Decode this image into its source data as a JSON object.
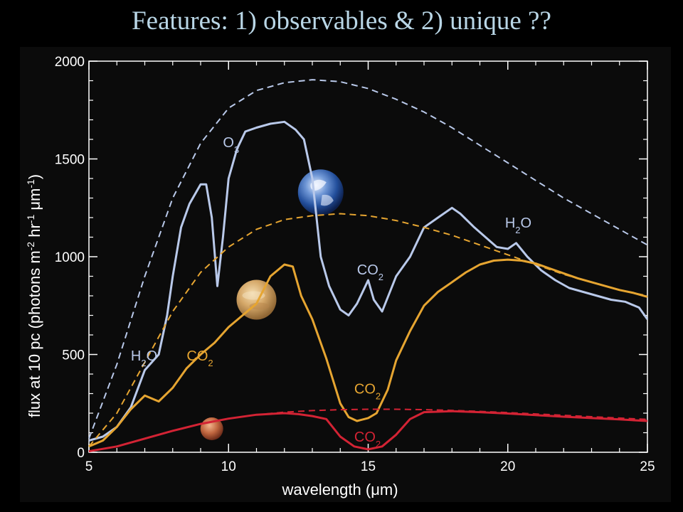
{
  "title": "Features:  1) observables  &  2) unique ??",
  "chart_data": {
    "type": "line",
    "xlabel": "wavelength (μm)",
    "ylabel_parts": {
      "base": "flux at 10 pc (photons m",
      "exp1": "-2",
      "mid": " hr",
      "exp2": "-1",
      "end": " μm",
      "exp3": "-1",
      "close": ")"
    },
    "xlim": [
      5,
      25
    ],
    "ylim": [
      0,
      2000
    ],
    "x_ticks": [
      5,
      10,
      15,
      20,
      25
    ],
    "y_ticks": [
      0,
      500,
      1000,
      1500,
      2000
    ],
    "colors": {
      "earth": "#b9c9ea",
      "venus": "#e6a531",
      "mars": "#d32334"
    },
    "series": [
      {
        "key": "earth-blackbody",
        "style": "dashed",
        "color": "#b9c9ea",
        "x": [
          5,
          6,
          7,
          8,
          9,
          10,
          11,
          12,
          13,
          14,
          15,
          16,
          17,
          18,
          19,
          20,
          21,
          22,
          23,
          24,
          25
        ],
        "y": [
          70,
          450,
          900,
          1300,
          1580,
          1760,
          1850,
          1890,
          1905,
          1895,
          1860,
          1805,
          1740,
          1660,
          1570,
          1480,
          1390,
          1300,
          1220,
          1140,
          1060
        ]
      },
      {
        "key": "earth-spectrum",
        "style": "solid",
        "color": "#b9c9ea",
        "x": [
          5,
          5.5,
          6,
          6.5,
          7,
          7.5,
          7.8,
          8,
          8.3,
          8.6,
          9,
          9.2,
          9.4,
          9.6,
          9.8,
          10,
          10.3,
          10.6,
          11,
          11.5,
          12,
          12.4,
          12.7,
          13,
          13.3,
          13.6,
          14,
          14.3,
          14.6,
          14.9,
          15,
          15.2,
          15.5,
          16,
          16.5,
          17,
          17.5,
          18,
          18.3,
          18.8,
          19.2,
          19.6,
          20,
          20.3,
          20.7,
          21.2,
          21.7,
          22.2,
          22.7,
          23.2,
          23.7,
          24.2,
          24.7,
          25
        ],
        "y": [
          60,
          80,
          130,
          230,
          420,
          500,
          700,
          900,
          1150,
          1270,
          1370,
          1370,
          1200,
          850,
          1100,
          1400,
          1550,
          1640,
          1660,
          1680,
          1690,
          1650,
          1600,
          1400,
          1000,
          850,
          730,
          700,
          760,
          850,
          880,
          780,
          720,
          900,
          1000,
          1150,
          1200,
          1250,
          1220,
          1150,
          1100,
          1050,
          1040,
          1070,
          1000,
          930,
          880,
          840,
          820,
          800,
          780,
          770,
          740,
          680
        ]
      },
      {
        "key": "venus-blackbody",
        "style": "dashed",
        "color": "#e6a531",
        "x": [
          5,
          6,
          7,
          8,
          9,
          10,
          11,
          12,
          13,
          14,
          15,
          16,
          17,
          18,
          19,
          20,
          21,
          22,
          23,
          24,
          25
        ],
        "y": [
          30,
          200,
          460,
          720,
          920,
          1050,
          1140,
          1190,
          1210,
          1220,
          1210,
          1185,
          1150,
          1110,
          1060,
          1010,
          960,
          910,
          870,
          830,
          800
        ]
      },
      {
        "key": "venus-spectrum",
        "style": "solid",
        "color": "#e6a531",
        "x": [
          5,
          5.5,
          6,
          6.5,
          7,
          7.5,
          8,
          8.5,
          9,
          9.5,
          10,
          10.5,
          11,
          11.5,
          12,
          12.3,
          12.6,
          13,
          13.5,
          14,
          14.3,
          14.6,
          15,
          15.3,
          15.7,
          16,
          16.5,
          17,
          17.5,
          18,
          18.5,
          19,
          19.5,
          20,
          20.5,
          21,
          21.5,
          22,
          22.5,
          23,
          23.5,
          24,
          24.5,
          25
        ],
        "y": [
          30,
          60,
          130,
          220,
          290,
          260,
          330,
          430,
          500,
          560,
          640,
          700,
          760,
          900,
          960,
          950,
          800,
          680,
          480,
          250,
          180,
          160,
          175,
          200,
          320,
          470,
          620,
          750,
          820,
          870,
          920,
          960,
          980,
          985,
          980,
          965,
          940,
          915,
          890,
          870,
          850,
          830,
          815,
          795
        ]
      },
      {
        "key": "mars-blackbody",
        "style": "dashed",
        "color": "#d32334",
        "x": [
          5,
          6,
          7,
          8,
          9,
          10,
          11,
          12,
          13,
          14,
          15,
          16,
          17,
          18,
          19,
          20,
          21,
          22,
          23,
          24,
          25
        ],
        "y": [
          5,
          30,
          70,
          110,
          145,
          172,
          192,
          205,
          213,
          218,
          220,
          220,
          218,
          214,
          209,
          203,
          196,
          189,
          182,
          175,
          168
        ]
      },
      {
        "key": "mars-spectrum",
        "style": "solid",
        "color": "#d32334",
        "x": [
          5,
          6,
          7,
          8,
          9,
          10,
          11,
          12,
          12.5,
          13,
          13.5,
          14,
          14.5,
          15,
          15.5,
          16,
          16.5,
          17,
          18,
          19,
          20,
          21,
          22,
          23,
          24,
          25
        ],
        "y": [
          5,
          30,
          70,
          110,
          145,
          172,
          192,
          200,
          195,
          185,
          170,
          80,
          30,
          15,
          30,
          90,
          170,
          205,
          210,
          205,
          198,
          190,
          182,
          175,
          168,
          160
        ]
      }
    ],
    "annotations": [
      {
        "key": "o3",
        "base": "O",
        "sub": "3",
        "after": "",
        "x": 9.8,
        "y": 1560,
        "color": "#b9c9ea"
      },
      {
        "key": "h2o-earth-left",
        "base": "H",
        "sub": "2",
        "after": "O",
        "x": 6.5,
        "y": 470,
        "color": "#b9c9ea"
      },
      {
        "key": "co2-earth",
        "base": "CO",
        "sub": "2",
        "after": "",
        "x": 14.6,
        "y": 910,
        "color": "#b9c9ea"
      },
      {
        "key": "h2o-earth-right",
        "base": "H",
        "sub": "2",
        "after": "O",
        "x": 19.9,
        "y": 1150,
        "color": "#b9c9ea"
      },
      {
        "key": "co2-venus-left",
        "base": "CO",
        "sub": "2",
        "after": "",
        "x": 8.5,
        "y": 470,
        "color": "#e6a531"
      },
      {
        "key": "co2-venus-bottom",
        "base": "CO",
        "sub": "2",
        "after": "",
        "x": 14.5,
        "y": 300,
        "color": "#e6a531"
      },
      {
        "key": "co2-mars",
        "base": "CO",
        "sub": "2",
        "after": "",
        "x": 14.5,
        "y": 55,
        "color": "#d32334"
      }
    ],
    "planets": [
      {
        "key": "earth",
        "x": 13.3,
        "y": 1330,
        "r": 32
      },
      {
        "key": "venus",
        "x": 11.0,
        "y": 780,
        "r": 28
      },
      {
        "key": "mars",
        "x": 9.4,
        "y": 120,
        "r": 16
      }
    ]
  }
}
